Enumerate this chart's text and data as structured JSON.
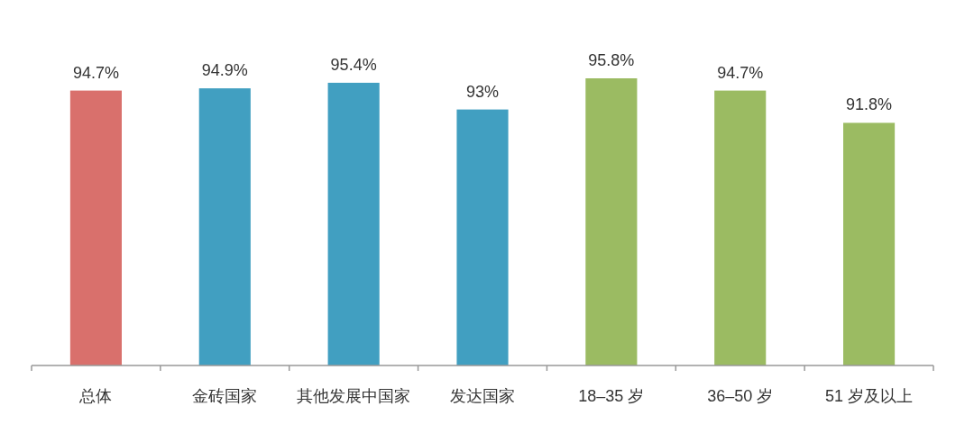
{
  "chart_data": {
    "type": "bar",
    "categories": [
      "总体",
      "金砖国家",
      "其他发展中国家",
      "发达国家",
      "18–35 岁",
      "36–50 岁",
      "51 岁及以上"
    ],
    "values": [
      94.7,
      94.9,
      95.4,
      93,
      95.8,
      94.7,
      91.8
    ],
    "colors": [
      "#d9706c",
      "#419fc1",
      "#419fc1",
      "#419fc1",
      "#9bbb62",
      "#9bbb62",
      "#9bbb62"
    ],
    "value_labels": [
      "94.7%",
      "94.9%",
      "95.4%",
      "93%",
      "95.8%",
      "94.7%",
      "91.8%"
    ],
    "ylim": [
      70,
      95.8
    ]
  }
}
